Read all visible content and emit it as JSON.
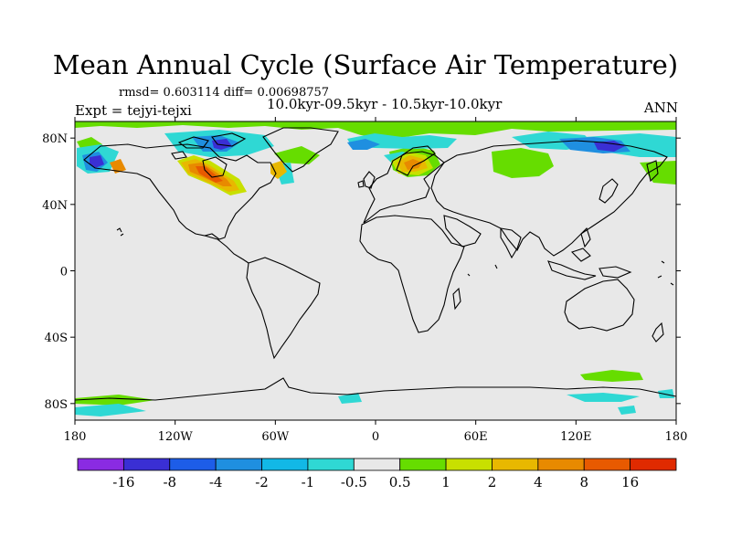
{
  "title": "Mean Annual Cycle (Surface Air Temperature)",
  "stats": "rmsd= 0.603114 diff= 0.00698757",
  "periods": "10.0kyr-09.5kyr - 10.5kyr-10.0kyr",
  "experiment": "Expt = tejyi-tejxi",
  "season": "ANN",
  "map": {
    "lat_labels": [
      "80N",
      "40N",
      "0",
      "40S",
      "80S"
    ],
    "lon_labels": [
      "180",
      "120W",
      "60W",
      "0",
      "60E",
      "120E",
      "180"
    ]
  },
  "legend": {
    "labels": [
      "-16",
      "-8",
      "-4",
      "-2",
      "-1",
      "-0.5",
      "0.5",
      "1",
      "2",
      "4",
      "8",
      "16"
    ],
    "colors": [
      "#8a2be2",
      "#3a2fd4",
      "#1d5de8",
      "#1f8fe0",
      "#12b8e6",
      "#2fd8d4",
      "#e8e8e8",
      "#66dd00",
      "#c8e000",
      "#e8b800",
      "#e88a00",
      "#e85a00",
      "#e02a00"
    ]
  },
  "colors": {
    "land_background": "#e8e8e8",
    "coastline": "#000000"
  }
}
